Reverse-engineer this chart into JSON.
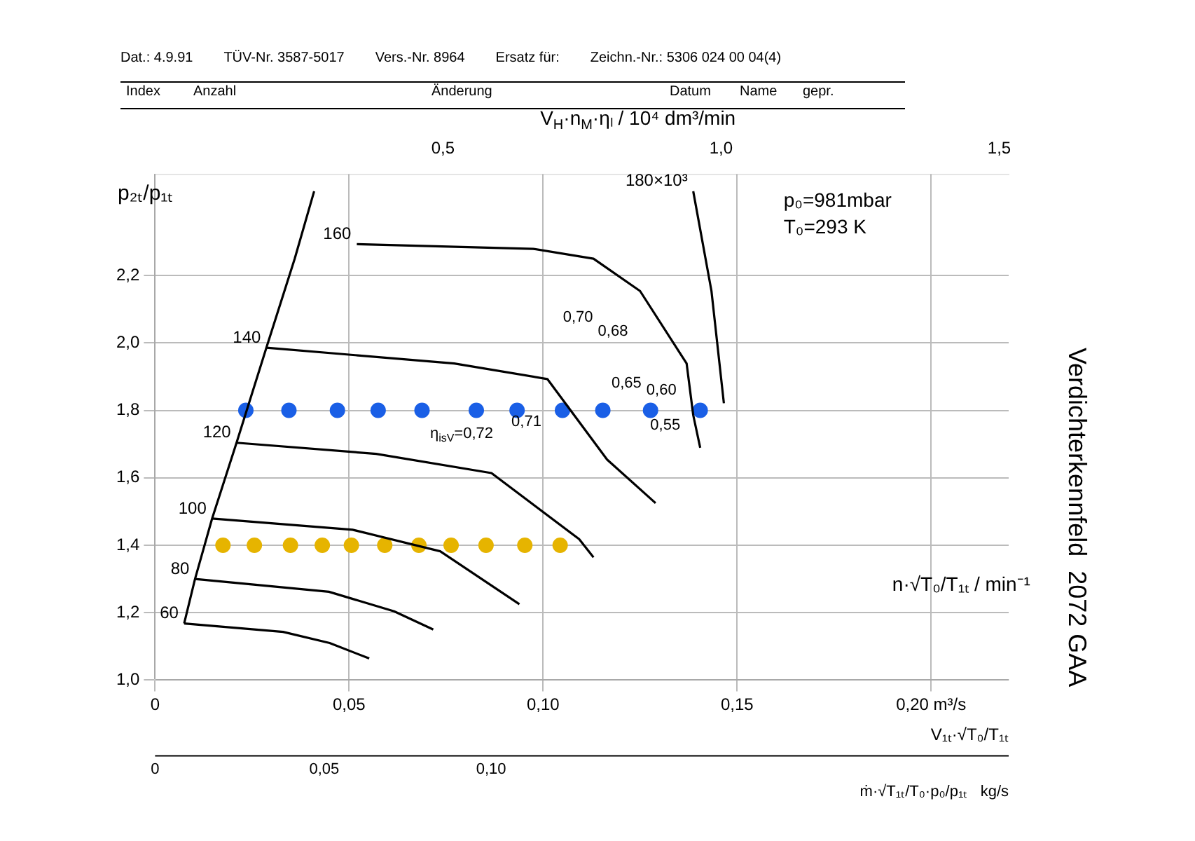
{
  "chart_data": {
    "type": "scatter",
    "title": "Verdichterkennfeld  2072 GAA",
    "xlabel": "V₁ₜ·√T₀/T₁ₜ",
    "ylabel": "p₂ₜ/p₁ₜ",
    "x2label": "V$_{H}$·n$_{M}$·ηₗ / 10⁴ dm³/min",
    "xlim": [
      0,
      0.22
    ],
    "xticks": [
      0,
      {
        "value": 0.05,
        "label": "0,05"
      },
      {
        "value": 0.1,
        "label": "0,10"
      },
      {
        "value": 0.15,
        "label": "0,15"
      },
      {
        "value": 0.2,
        "label": "0,20 m³/s"
      }
    ],
    "x2lim": [
      -0.0175,
      1.517
    ],
    "x2ticks": [
      {
        "value": 0.5,
        "label": "0,5"
      },
      {
        "value": 1.0,
        "label": "1,0"
      },
      {
        "value": 1.5,
        "label": "1,5"
      }
    ],
    "ylim": [
      1.0,
      2.5
    ],
    "yticks": [
      {
        "value": 1.0,
        "label": "1,0"
      },
      {
        "value": 1.2,
        "label": "1,2"
      },
      {
        "value": 1.4,
        "label": "1,4"
      },
      {
        "value": 1.6,
        "label": "1,6"
      },
      {
        "value": 1.8,
        "label": "1,8"
      },
      {
        "value": 2.0,
        "label": "2,0"
      },
      {
        "value": 2.2,
        "label": "2,2"
      }
    ],
    "grid": true,
    "legend": false,
    "series": [
      {
        "type": "line",
        "color": "#000000",
        "marker": "none",
        "x": [
          0.0075,
          0.0103,
          0.0147,
          0.021,
          0.0287,
          0.036,
          0.041
        ],
        "values": [
          1.168,
          1.3,
          1.479,
          1.704,
          1.986,
          2.25,
          2.45
        ]
      },
      {
        "type": "line",
        "name": "60",
        "color": "#000000",
        "marker": "none",
        "x": [
          0.0075,
          0.033,
          0.045,
          0.0552
        ],
        "values": [
          1.168,
          1.143,
          1.11,
          1.064
        ]
      },
      {
        "type": "line",
        "name": "80",
        "color": "#000000",
        "marker": "none",
        "x": [
          0.0103,
          0.0448,
          0.0616,
          0.0717
        ],
        "values": [
          1.3,
          1.262,
          1.204,
          1.15
        ]
      },
      {
        "type": "line",
        "name": "100",
        "color": "#000000",
        "marker": "none",
        "x": [
          0.0147,
          0.0509,
          0.0735,
          0.0939
        ],
        "values": [
          1.479,
          1.446,
          1.382,
          1.225
        ]
      },
      {
        "type": "line",
        "name": "120",
        "color": "#000000",
        "marker": "none",
        "x": [
          0.021,
          0.057,
          0.0867,
          0.1093,
          0.113
        ],
        "values": [
          1.704,
          1.671,
          1.614,
          1.418,
          1.364
        ]
      },
      {
        "type": "line",
        "name": "140",
        "color": "#000000",
        "marker": "none",
        "x": [
          0.0287,
          0.0771,
          0.1011,
          0.1165,
          0.129
        ],
        "values": [
          1.986,
          1.939,
          1.893,
          1.654,
          1.525
        ]
      },
      {
        "type": "line",
        "name": "160",
        "color": "#000000",
        "marker": "none",
        "x": [
          0.052,
          0.0975,
          0.113,
          0.125,
          0.137,
          0.1387,
          0.1405
        ],
        "values": [
          2.293,
          2.279,
          2.25,
          2.154,
          1.939,
          1.786,
          1.689
        ]
      },
      {
        "type": "line",
        "name": "180×10³",
        "color": "#000000",
        "marker": "none",
        "x": [
          0.1387,
          0.1434,
          0.1466
        ],
        "values": [
          2.45,
          2.154,
          1.821
        ]
      },
      {
        "type": "scatter",
        "color": "#1a5fe6",
        "marker": "circle",
        "x": [
          0.0234,
          0.0345,
          0.047,
          0.0575,
          0.0688,
          0.0828,
          0.0933,
          0.105,
          0.1154,
          0.1277,
          0.1405
        ],
        "values": [
          1.8,
          1.8,
          1.8,
          1.8,
          1.8,
          1.8,
          1.8,
          1.8,
          1.8,
          1.8,
          1.8
        ]
      },
      {
        "type": "scatter",
        "color": "#e6b400",
        "marker": "circle",
        "x": [
          0.0175,
          0.0256,
          0.0349,
          0.0431,
          0.0506,
          0.0592,
          0.068,
          0.0763,
          0.0853,
          0.0953,
          0.1044
        ],
        "values": [
          1.4,
          1.4,
          1.4,
          1.4,
          1.4,
          1.4,
          1.4,
          1.4,
          1.4,
          1.4,
          1.4
        ]
      }
    ],
    "annotations": [
      "p₀=981mbar",
      "T₀=293 K",
      "n·√T₀/T₁ₜ / min⁻¹",
      "Index",
      "Anzahl",
      "Änderung",
      "Datum",
      "Name",
      "gepr.",
      "Dat.: 4.9.91",
      "TÜV-Nr. 3587-5017",
      "Vers.-Nr. 8964",
      "Ersatz für:",
      "Zeichn.-Nr.: 5306 024 00 04(4)",
      "η$_{isV}$=0,72",
      "0,71",
      "0,70",
      "0,68",
      "0,65",
      "0,60",
      "0,55",
      "0",
      "0,05",
      "0,10",
      "ṁ·√T₁ₜ/T₀·p₀/p₁ₜ   kg/s"
    ]
  }
}
